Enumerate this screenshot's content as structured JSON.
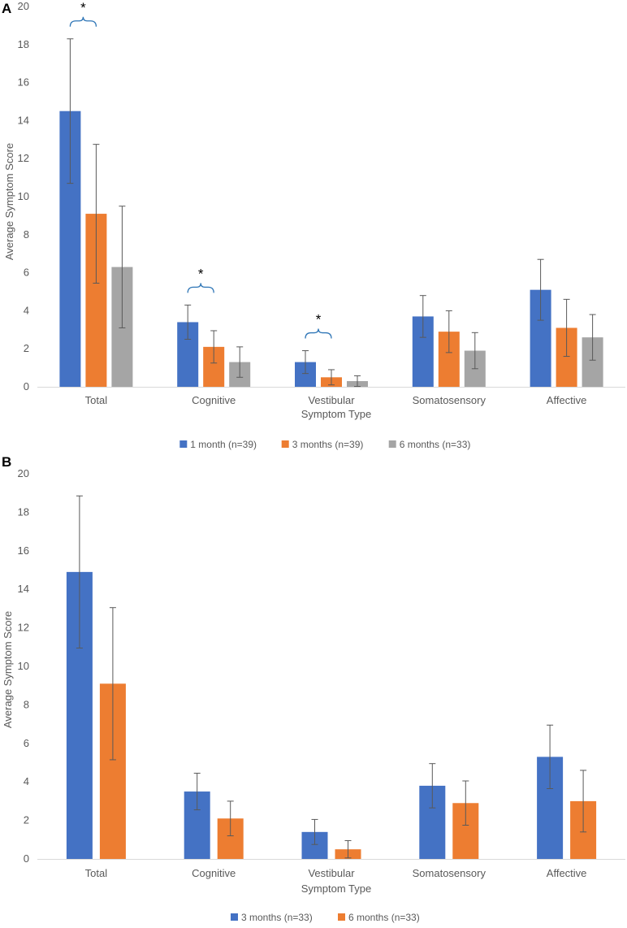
{
  "chart_data": [
    {
      "type": "bar",
      "panel_label": "A",
      "xlabel": "Symptom Type",
      "ylabel": "Average Symptom Score",
      "ylim": [
        0,
        20
      ],
      "yticks": [
        0,
        2,
        4,
        6,
        8,
        10,
        12,
        14,
        16,
        18,
        20
      ],
      "grid": false,
      "legend_position": "bottom",
      "categories": [
        "Total",
        "Cognitive",
        "Vestibular",
        "Somatosensory",
        "Affective"
      ],
      "series": [
        {
          "name": "1 month (n=39)",
          "color": "#4472C4",
          "values": [
            14.5,
            3.4,
            1.3,
            3.7,
            5.1
          ],
          "errors": [
            3.8,
            0.9,
            0.6,
            1.1,
            1.6
          ]
        },
        {
          "name": "3 months (n=39)",
          "color": "#ED7D31",
          "values": [
            9.1,
            2.1,
            0.5,
            2.9,
            3.1
          ],
          "errors": [
            3.65,
            0.85,
            0.4,
            1.1,
            1.5
          ]
        },
        {
          "name": "6 months (n=33)",
          "color": "#A5A5A5",
          "values": [
            6.3,
            1.3,
            0.3,
            1.9,
            2.6
          ],
          "errors": [
            3.2,
            0.8,
            0.28,
            0.95,
            1.2
          ]
        }
      ],
      "significance": [
        {
          "category": "Total",
          "label": "*",
          "between": [
            "1 month (n=39)",
            "3 months (n=39)"
          ]
        },
        {
          "category": "Cognitive",
          "label": "*",
          "between": [
            "1 month (n=39)",
            "3 months (n=39)"
          ]
        },
        {
          "category": "Vestibular",
          "label": "*",
          "between": [
            "1 month (n=39)",
            "3 months (n=39)"
          ]
        }
      ]
    },
    {
      "type": "bar",
      "panel_label": "B",
      "xlabel": "Symptom Type",
      "ylabel": "Average Symptom Score",
      "ylim": [
        0,
        20
      ],
      "yticks": [
        0,
        2,
        4,
        6,
        8,
        10,
        12,
        14,
        16,
        18,
        20
      ],
      "grid": false,
      "legend_position": "bottom",
      "categories": [
        "Total",
        "Cognitive",
        "Vestibular",
        "Somatosensory",
        "Affective"
      ],
      "series": [
        {
          "name": "3 months (n=33)",
          "color": "#4472C4",
          "values": [
            14.9,
            3.5,
            1.4,
            3.8,
            5.3
          ],
          "errors": [
            3.95,
            0.95,
            0.65,
            1.15,
            1.65
          ]
        },
        {
          "name": "6 months (n=33)",
          "color": "#ED7D31",
          "values": [
            9.1,
            2.1,
            0.5,
            2.9,
            3.0
          ],
          "errors": [
            3.95,
            0.9,
            0.45,
            1.15,
            1.6
          ]
        }
      ],
      "significance": []
    }
  ]
}
